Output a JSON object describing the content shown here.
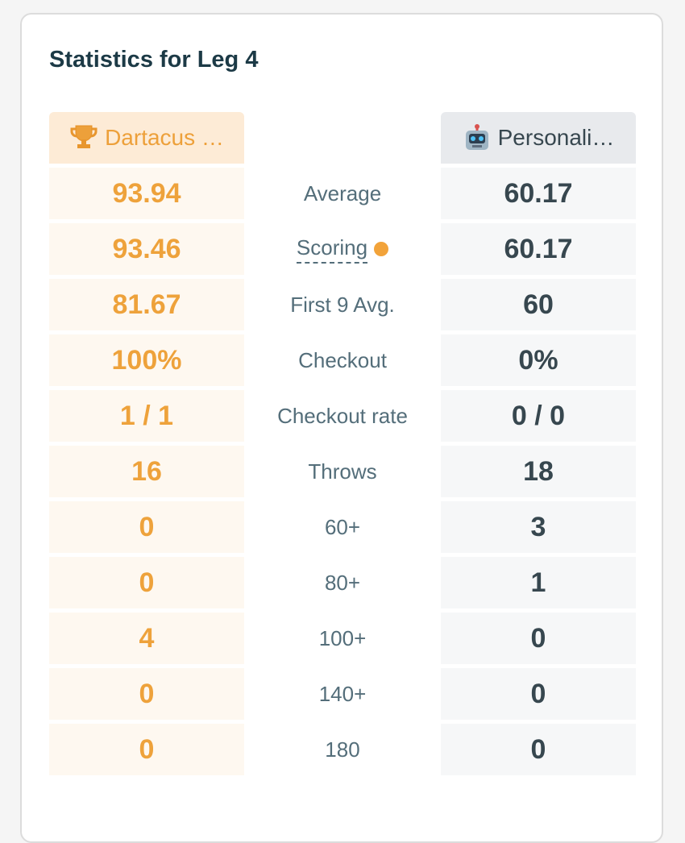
{
  "header": {
    "title": "Statistics for Leg 4"
  },
  "players": [
    "Dartacus …",
    "Personali…"
  ],
  "rows": [
    {
      "label": "Average",
      "p1": "93.94",
      "p2": "60.17"
    },
    {
      "label": "Scoring",
      "p1": "93.46",
      "p2": "60.17"
    },
    {
      "label": "First 9 Avg.",
      "p1": "81.67",
      "p2": "60"
    },
    {
      "label": "Checkout",
      "p1": "100%",
      "p2": "0%"
    },
    {
      "label": "Checkout rate",
      "p1": "1 / 1",
      "p2": "0 / 0"
    },
    {
      "label": "Throws",
      "p1": "16",
      "p2": "18"
    },
    {
      "label": "60+",
      "p1": "0",
      "p2": "3"
    },
    {
      "label": "80+",
      "p1": "0",
      "p2": "1"
    },
    {
      "label": "100+",
      "p1": "4",
      "p2": "0"
    },
    {
      "label": "140+",
      "p1": "0",
      "p2": "0"
    },
    {
      "label": "180",
      "p1": "0",
      "p2": "0"
    }
  ]
}
